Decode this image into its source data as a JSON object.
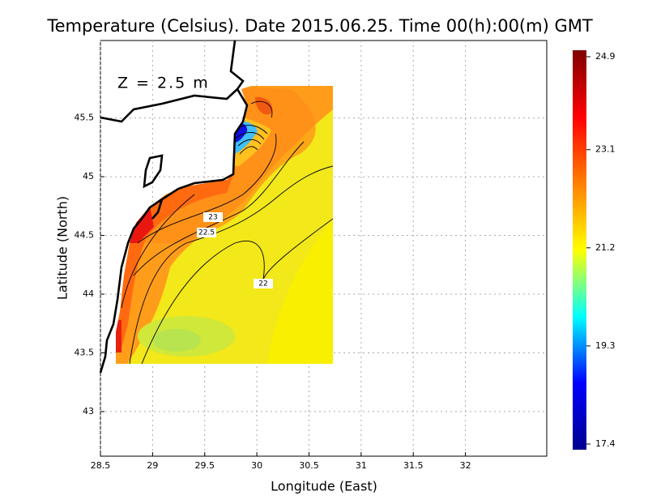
{
  "chart_data": {
    "type": "heatmap",
    "title": "Temperature (Celsius). Date 2015.06.25. Time 00(h):00(m) GMT",
    "depth_label": "Z = 2.5 m",
    "x_label": "Longitude (East)",
    "y_label": "Latitude (North)",
    "xlim": [
      28.5,
      32.78
    ],
    "ylim": [
      42.62,
      46.16
    ],
    "xticks": [
      28.5,
      29,
      29.5,
      30,
      30.5,
      31,
      31.5,
      32
    ],
    "yticks": [
      43,
      43.5,
      44,
      44.5,
      45,
      45.5
    ],
    "grid": true,
    "contour_labels": [
      23,
      22.5,
      22
    ],
    "colorbar_lim": [
      17.4,
      24.9
    ],
    "colorbar_ticks": [
      17.4,
      19.3,
      21.2,
      23.1,
      24.9
    ],
    "colormap": [
      "#00008f",
      "#0000ff",
      "#00ffff",
      "#ffff00",
      "#ff7f00",
      "#ff0000",
      "#7f0000"
    ]
  }
}
